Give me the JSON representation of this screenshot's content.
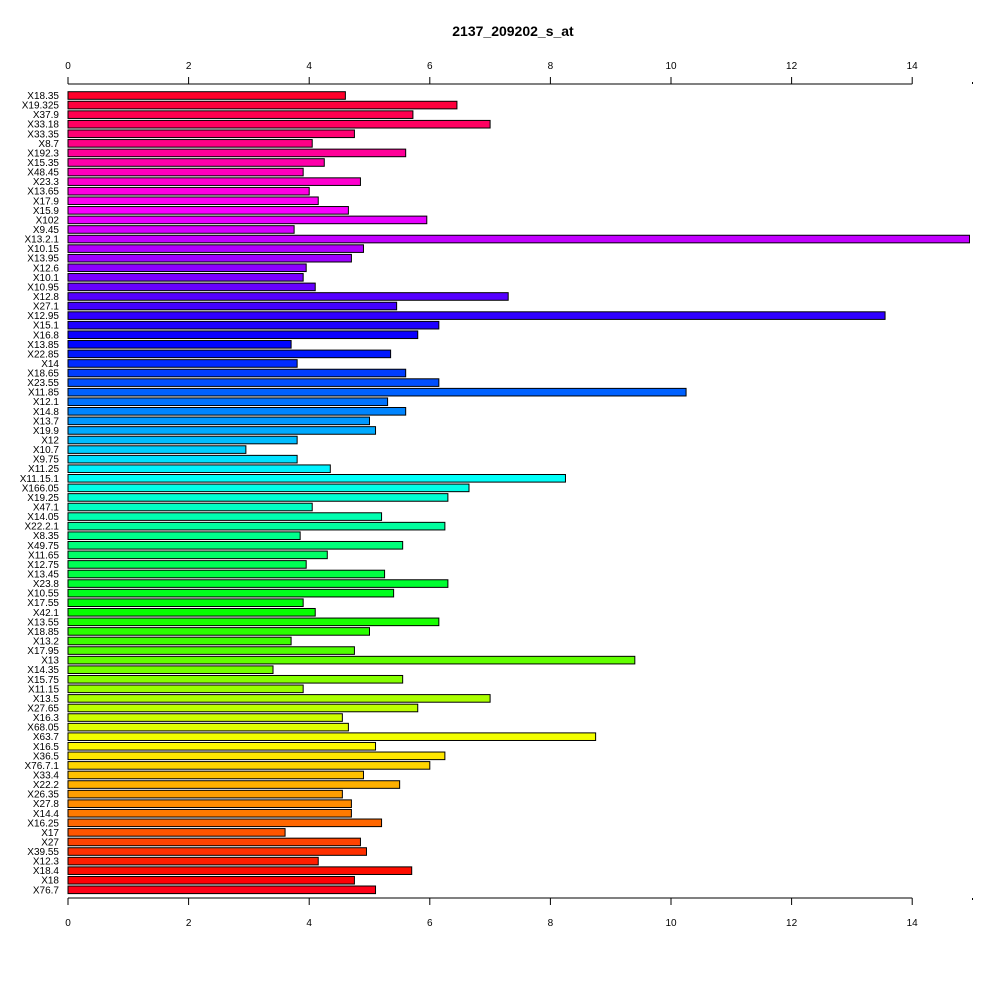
{
  "chart_data": {
    "type": "bar",
    "orientation": "horizontal",
    "title": "2137_209202_s_at",
    "xlabel": "",
    "ylabel": "",
    "xlim": [
      0,
      15
    ],
    "x_ticks": [
      0,
      2,
      4,
      6,
      8,
      10,
      12,
      14
    ],
    "axis_positions": [
      "top",
      "bottom"
    ],
    "grid": false,
    "color_scheme": "rainbow",
    "categories": [
      "X18.35",
      "X19.325",
      "X37.9",
      "X33.18",
      "X33.35",
      "X8.7",
      "X192.3",
      "X15.35",
      "X48.45",
      "X23.3",
      "X13.65",
      "X17.9",
      "X15.9",
      "X102",
      "X9.45",
      "X13.2.1",
      "X10.15",
      "X13.95",
      "X12.6",
      "X10.1",
      "X10.95",
      "X12.8",
      "X27.1",
      "X12.95",
      "X15.1",
      "X16.8",
      "X13.85",
      "X22.85",
      "X14",
      "X18.65",
      "X23.55",
      "X11.85",
      "X12.1",
      "X14.8",
      "X13.7",
      "X19.9",
      "X12",
      "X10.7",
      "X9.75",
      "X11.25",
      "X11.15.1",
      "X166.05",
      "X19.25",
      "X47.1",
      "X14.05",
      "X22.2.1",
      "X8.35",
      "X49.75",
      "X11.65",
      "X12.75",
      "X13.45",
      "X23.8",
      "X10.55",
      "X17.55",
      "X42.1",
      "X13.55",
      "X18.85",
      "X13.2",
      "X17.95",
      "X13",
      "X14.35",
      "X15.75",
      "X11.15",
      "X13.5",
      "X27.65",
      "X16.3",
      "X68.05",
      "X63.7",
      "X16.5",
      "X36.5",
      "X76.7.1",
      "X33.4",
      "X22.2",
      "X26.35",
      "X27.8",
      "X14.4",
      "X16.25",
      "X17",
      "X27",
      "X39.55",
      "X12.3",
      "X18.4",
      "X18",
      "X76.7"
    ],
    "values": [
      4.6,
      6.45,
      5.72,
      7.0,
      4.75,
      4.05,
      5.6,
      4.25,
      3.9,
      4.85,
      4.0,
      4.15,
      4.65,
      5.95,
      3.75,
      14.95,
      4.9,
      4.7,
      3.95,
      3.9,
      4.1,
      7.3,
      5.45,
      13.55,
      6.15,
      5.8,
      3.7,
      5.35,
      3.8,
      5.6,
      6.15,
      10.25,
      5.3,
      5.6,
      5.0,
      5.1,
      3.8,
      2.95,
      3.8,
      4.35,
      8.25,
      6.65,
      6.3,
      4.05,
      5.2,
      6.25,
      3.85,
      5.55,
      4.3,
      3.95,
      5.25,
      6.3,
      5.4,
      3.9,
      4.1,
      6.15,
      5.0,
      3.7,
      4.75,
      9.4,
      3.4,
      5.55,
      3.9,
      7.0,
      5.8,
      4.55,
      4.65,
      8.75,
      5.1,
      6.25,
      6.0,
      4.9,
      5.5,
      4.55,
      4.7,
      4.7,
      5.2,
      3.6,
      4.85,
      4.95,
      4.15,
      5.7,
      4.75,
      5.1
    ]
  }
}
